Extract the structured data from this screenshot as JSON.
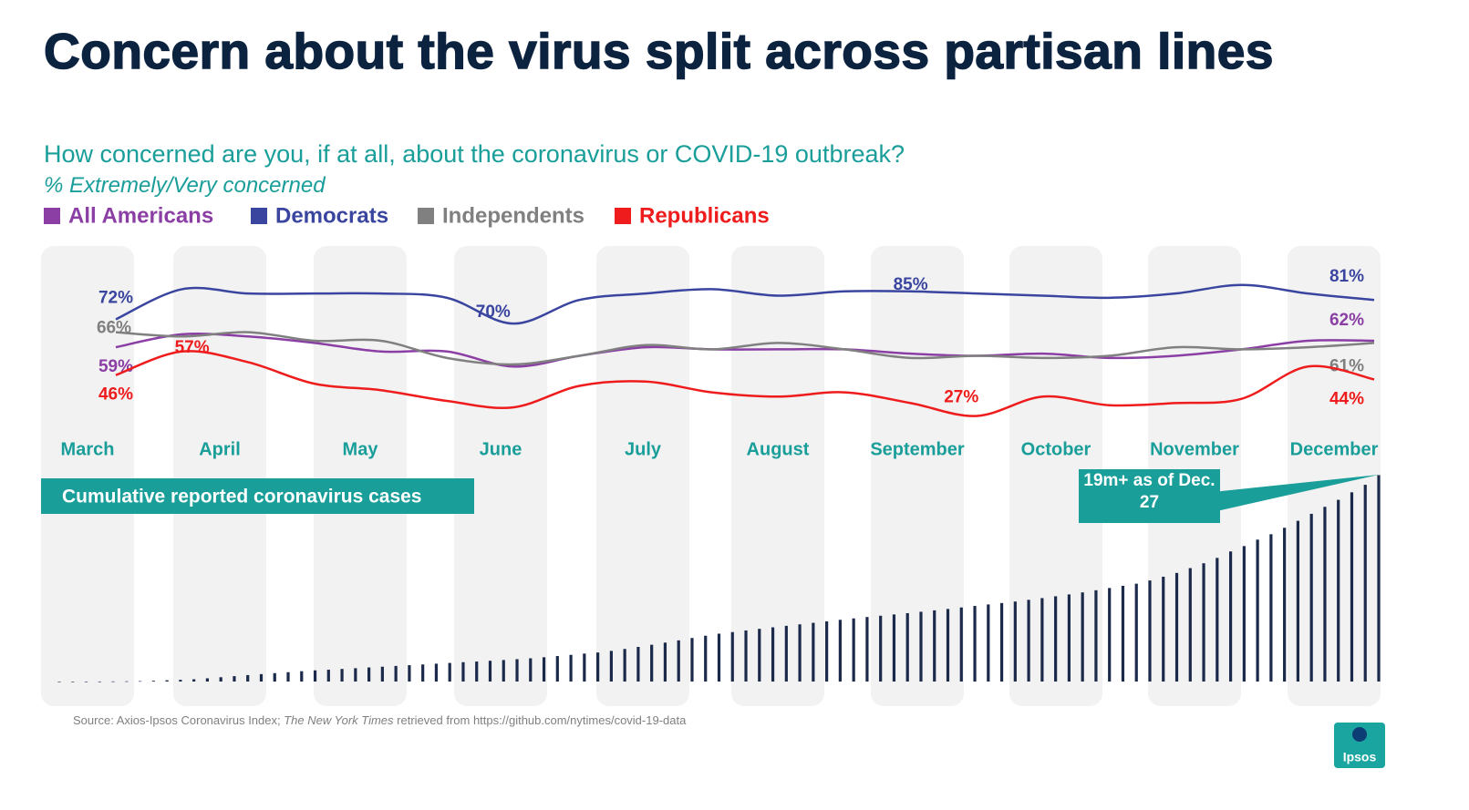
{
  "title": "Concern about the virus split across partisan lines",
  "chart_data": [
    {
      "type": "line",
      "subtitle": "How concerned are you, if at all, about the coronavirus or COVID-19 outbreak?",
      "note": "% Extremely/Very concerned",
      "categories": [
        "March",
        null,
        "April",
        null,
        "May",
        null,
        "June",
        null,
        "July",
        null,
        "August",
        null,
        "September",
        null,
        "October",
        null,
        "November",
        null,
        "December",
        null
      ],
      "ylim": [
        20,
        90
      ],
      "series": [
        {
          "name": "All Americans",
          "color": "#8b3fa5",
          "values": [
            59,
            65,
            64,
            61,
            57,
            57,
            50,
            55,
            59,
            58,
            58,
            58,
            56,
            55,
            56,
            54,
            55,
            58,
            62,
            62
          ],
          "value_labels": [
            "59%",
            null,
            null,
            null,
            null,
            null,
            null,
            null,
            null,
            null,
            null,
            null,
            null,
            null,
            null,
            null,
            null,
            null,
            null,
            "62%"
          ]
        },
        {
          "name": "Democrats",
          "color": "#3a45a0",
          "values": [
            72,
            86,
            84,
            84,
            84,
            82,
            70,
            81,
            84,
            86,
            83,
            85,
            85,
            84,
            83,
            82,
            84,
            88,
            84,
            81
          ],
          "value_labels": [
            "72%",
            null,
            null,
            null,
            null,
            null,
            "70%",
            null,
            null,
            null,
            null,
            null,
            "85%",
            null,
            null,
            null,
            null,
            null,
            null,
            "81%"
          ]
        },
        {
          "name": "Independents",
          "color": "#808080",
          "values": [
            66,
            64,
            66,
            62,
            62,
            54,
            51,
            55,
            60,
            58,
            61,
            58,
            54,
            55,
            54,
            55,
            59,
            58,
            59,
            61
          ],
          "value_labels": [
            "66%",
            null,
            null,
            null,
            null,
            null,
            null,
            null,
            null,
            null,
            null,
            null,
            null,
            null,
            null,
            null,
            null,
            null,
            null,
            "61%"
          ]
        },
        {
          "name": "Republicans",
          "color": "#ee1c1c",
          "values": [
            46,
            57,
            52,
            42,
            39,
            34,
            31,
            41,
            43,
            38,
            36,
            38,
            33,
            27,
            36,
            32,
            33,
            35,
            50,
            44
          ],
          "value_labels": [
            "46%",
            "57%",
            null,
            null,
            null,
            null,
            null,
            null,
            null,
            null,
            null,
            null,
            null,
            "27%",
            null,
            null,
            null,
            null,
            null,
            "44%"
          ]
        }
      ]
    },
    {
      "type": "bar",
      "title": "Cumulative reported coronavirus cases",
      "annotation": "19m+ as of Dec. 27",
      "color": "#1b2a4a",
      "ylim": [
        0,
        20
      ],
      "values": [
        0,
        0,
        0,
        0,
        0.01,
        0.02,
        0.04,
        0.07,
        0.12,
        0.16,
        0.21,
        0.3,
        0.4,
        0.5,
        0.6,
        0.69,
        0.78,
        0.87,
        0.96,
        1.04,
        1.1,
        1.17,
        1.24,
        1.31,
        1.38,
        1.45,
        1.52,
        1.59,
        1.66,
        1.73,
        1.8,
        1.86,
        1.93,
        2.0,
        2.08,
        2.16,
        2.26,
        2.37,
        2.48,
        2.6,
        2.7,
        2.85,
        3.03,
        3.22,
        3.42,
        3.62,
        3.83,
        4.05,
        4.26,
        4.45,
        4.6,
        4.75,
        4.9,
        5.04,
        5.18,
        5.32,
        5.46,
        5.6,
        5.74,
        5.87,
        6.0,
        6.12,
        6.24,
        6.36,
        6.49,
        6.62,
        6.75,
        6.89,
        7.03,
        7.17,
        7.3,
        7.44,
        7.6,
        7.76,
        7.93,
        8.1,
        8.29,
        8.49,
        8.7,
        8.9,
        9.1,
        9.4,
        9.75,
        10.1,
        10.55,
        11.0,
        11.5,
        12.1,
        12.6,
        13.2,
        13.7,
        14.3,
        14.95,
        15.6,
        16.25,
        16.9,
        17.6,
        18.3,
        19.2
      ]
    }
  ],
  "source": [
    "Source: Axios-Ipsos Coronavirus Index; ",
    "The New York Times",
    " retrieved from https://github.com/nytimes/covid-19-data"
  ],
  "logo": "Ipsos"
}
